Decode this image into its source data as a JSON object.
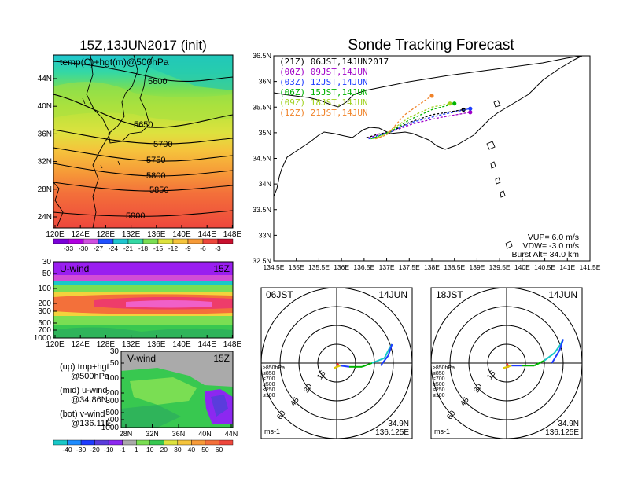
{
  "chart_data": [
    {
      "type": "heatmap",
      "panel": "temp-hgt-500",
      "title": "15Z,13JUN2017 (init)",
      "inner_label": "temp(C)+hgt(m)@500hPa",
      "xticks": [
        "120E",
        "124E",
        "128E",
        "132E",
        "136E",
        "140E",
        "144E",
        "148E"
      ],
      "yticks": [
        "44N",
        "40N",
        "36N",
        "32N",
        "28N",
        "24N"
      ],
      "contours": [
        "5600",
        "5650",
        "5700",
        "5750",
        "5800",
        "5850",
        "5900"
      ],
      "colorbar": [
        "-33",
        "-30",
        "-27",
        "-24",
        "-21",
        "-18",
        "-15",
        "-12",
        "-9",
        "-6",
        "-3"
      ],
      "band_colors": [
        "#1fc6d0",
        "#34d8a4",
        "#7ade53",
        "#b3e33b",
        "#dde23e",
        "#f5c43c",
        "#f69a38",
        "#f3703a",
        "#ee473c"
      ]
    },
    {
      "type": "heatmap",
      "panel": "u-wind",
      "label": "U-wind",
      "time": "15Z",
      "yticks": [
        "30",
        "50",
        "100",
        "200",
        "300",
        "500",
        "700",
        "1000"
      ],
      "xticks": [
        "120E",
        "124E",
        "128E",
        "132E",
        "136E",
        "140E",
        "144E",
        "148E"
      ]
    },
    {
      "type": "heatmap",
      "panel": "v-wind",
      "label": "V-wind",
      "time": "15Z",
      "yticks": [
        "30",
        "50",
        "100",
        "200",
        "300",
        "500",
        "700",
        "1000"
      ],
      "xticks": [
        "28N",
        "32N",
        "36N",
        "40N",
        "44N"
      ],
      "colorbar": [
        "-40",
        "-30",
        "-20",
        "-10",
        "-1",
        "1",
        "10",
        "20",
        "30",
        "40",
        "50",
        "60"
      ]
    },
    {
      "type": "line",
      "panel": "sonde-tracking",
      "title": "Sonde Tracking Forecast",
      "xticks": [
        "134.5E",
        "135E",
        "135.5E",
        "136E",
        "136.5E",
        "137E",
        "137.5E",
        "138E",
        "138.5E",
        "139E",
        "139.5E",
        "140E",
        "140.5E",
        "141E",
        "141.5E"
      ],
      "yticks": [
        "36.5N",
        "36N",
        "35.5N",
        "35N",
        "34.5N",
        "34N",
        "33.5N",
        "33N",
        "32.5N"
      ],
      "xlim": [
        134.5,
        141.5
      ],
      "ylim": [
        32.5,
        36.5
      ],
      "legend": [
        {
          "label": "(21Z)  06JST,14JUN2017",
          "color": "#000000"
        },
        {
          "label": "(00Z)  09JST,14JUN",
          "color": "#a000c8"
        },
        {
          "label": "(03Z)  12JST,14JUN",
          "color": "#1e3cff"
        },
        {
          "label": "(06Z)  15JST,14JUN",
          "color": "#00b400"
        },
        {
          "label": "(09Z)  18JST,14JUN",
          "color": "#a0d21e"
        },
        {
          "label": "(12Z)  21JST,14JUN",
          "color": "#f08228"
        }
      ],
      "series": [
        {
          "name": "(21Z)  06JST,14JUN2017",
          "color": "#000000",
          "points": [
            [
              136.55,
              34.9
            ],
            [
              136.8,
              34.97
            ],
            [
              137.1,
              35.02
            ],
            [
              137.5,
              35.2
            ],
            [
              138.0,
              35.35
            ],
            [
              138.7,
              35.45
            ]
          ]
        },
        {
          "name": "(00Z)  09JST,14JUN",
          "color": "#a000c8",
          "points": [
            [
              136.6,
              34.9
            ],
            [
              136.85,
              34.97
            ],
            [
              137.1,
              35.02
            ],
            [
              137.6,
              35.18
            ],
            [
              138.2,
              35.3
            ],
            [
              138.85,
              35.4
            ]
          ]
        },
        {
          "name": "(03Z)  12JST,14JUN",
          "color": "#1e3cff",
          "points": [
            [
              136.6,
              34.88
            ],
            [
              136.85,
              34.96
            ],
            [
              137.1,
              35.02
            ],
            [
              137.55,
              35.2
            ],
            [
              138.2,
              35.35
            ],
            [
              138.85,
              35.47
            ]
          ]
        },
        {
          "name": "(06Z)  15JST,14JUN",
          "color": "#00b400",
          "points": [
            [
              136.65,
              34.88
            ],
            [
              136.9,
              34.96
            ],
            [
              137.1,
              35.03
            ],
            [
              137.5,
              35.25
            ],
            [
              138.0,
              35.45
            ],
            [
              138.5,
              35.57
            ]
          ]
        },
        {
          "name": "(09Z)  18JST,14JUN",
          "color": "#a0d21e",
          "points": [
            [
              136.7,
              34.88
            ],
            [
              136.95,
              34.96
            ],
            [
              137.1,
              35.05
            ],
            [
              137.5,
              35.3
            ],
            [
              138.0,
              35.5
            ],
            [
              138.4,
              35.57
            ]
          ]
        },
        {
          "name": "(12Z)  21JST,14JUN",
          "color": "#f08228",
          "points": [
            [
              136.75,
              34.88
            ],
            [
              137.0,
              34.96
            ],
            [
              137.1,
              35.05
            ],
            [
              137.4,
              35.35
            ],
            [
              137.8,
              35.6
            ],
            [
              138.0,
              35.72
            ]
          ]
        }
      ],
      "params": [
        {
          "label": "VUP=",
          "value": "6.0 m/s"
        },
        {
          "label": "VDW=",
          "value": "-3.0 m/s"
        },
        {
          "label": "Burst Alt=",
          "value": "34.0 km"
        }
      ]
    },
    {
      "type": "line",
      "panel": "hodograph-06jst",
      "left_label": "06JST",
      "right_label": "14JUN",
      "rings": [
        "15",
        "30",
        "45",
        "60"
      ],
      "levels": [
        "≥850hPa",
        "≤850",
        "≤700",
        "≤500",
        "≤250",
        "≤100"
      ],
      "level_colors": [
        "#ff2020",
        "#f08228",
        "#dccd00",
        "#00b400",
        "#19c8c8",
        "#1e3cff"
      ],
      "unit": "ms-1",
      "lat": "34.9N",
      "lon": "136.125E",
      "trace": [
        [
          0,
          0
        ],
        [
          2,
          -2
        ],
        [
          -2,
          -4
        ],
        [
          3,
          -2
        ],
        [
          10,
          -3
        ],
        [
          20,
          -3
        ],
        [
          28,
          0
        ],
        [
          38,
          4
        ],
        [
          42,
          12
        ],
        [
          44,
          15
        ],
        [
          41,
          6
        ],
        [
          35,
          -2
        ]
      ]
    },
    {
      "type": "line",
      "panel": "hodograph-18jst",
      "left_label": "18JST",
      "right_label": "14JUN",
      "rings": [
        "15",
        "30",
        "45",
        "60"
      ],
      "levels": [
        "≥850hPa",
        "≤850",
        "≤700",
        "≤500",
        "≤250",
        "≤100"
      ],
      "level_colors": [
        "#ff2020",
        "#f08228",
        "#dccd00",
        "#00b400",
        "#19c8c8",
        "#1e3cff"
      ],
      "unit": "ms-1",
      "lat": "34.9N",
      "lon": "136.125E",
      "trace": [
        [
          0,
          0
        ],
        [
          2,
          -3
        ],
        [
          -3,
          -4
        ],
        [
          4,
          -2
        ],
        [
          12,
          -2
        ],
        [
          22,
          -2
        ],
        [
          30,
          2
        ],
        [
          38,
          8
        ],
        [
          43,
          15
        ],
        [
          45,
          19
        ],
        [
          42,
          10
        ],
        [
          36,
          0
        ]
      ]
    }
  ],
  "legend_text": {
    "up": "(up)  tmp+hgt",
    "up2": "@500hPa",
    "mid": "(mid)  u-wind",
    "mid2": "@34.86N",
    "bot": "(bot)  v-wind",
    "bot2": "@136.11E"
  }
}
